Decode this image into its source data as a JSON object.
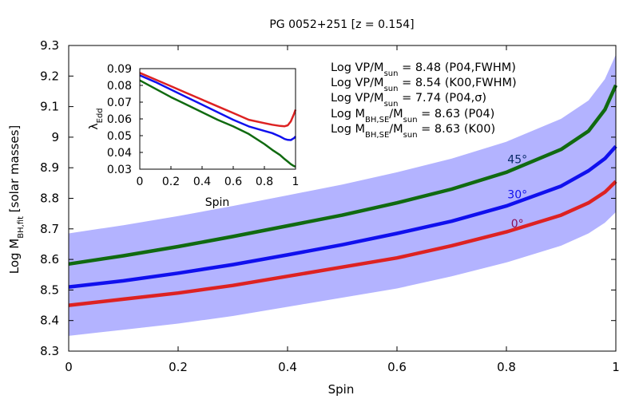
{
  "chart_data": [
    {
      "type": "line",
      "title": "PG 0052+251  [z = 0.154]",
      "xlabel": "Spin",
      "ylabel": "Log M_BH,fit  [solar masses]",
      "xlim": [
        0,
        1
      ],
      "ylim": [
        8.3,
        9.3
      ],
      "x_ticks": [
        "0",
        "0.2",
        "0.4",
        "0.6",
        "0.8",
        "1"
      ],
      "y_ticks": [
        "8.3",
        "8.4",
        "8.5",
        "8.6",
        "8.7",
        "8.8",
        "8.9",
        "9",
        "9.1",
        "9.2",
        "9.3"
      ],
      "x": [
        0,
        0.1,
        0.2,
        0.3,
        0.4,
        0.5,
        0.6,
        0.7,
        0.8,
        0.9,
        0.95,
        0.98,
        1.0
      ],
      "series": [
        {
          "name": "45°",
          "color": "#106a10",
          "values": [
            8.585,
            8.612,
            8.642,
            8.675,
            8.71,
            8.745,
            8.785,
            8.83,
            8.885,
            8.96,
            9.02,
            9.09,
            9.17
          ]
        },
        {
          "name": "30°",
          "color": "#1010ee",
          "values": [
            8.51,
            8.53,
            8.555,
            8.583,
            8.615,
            8.648,
            8.685,
            8.725,
            8.775,
            8.84,
            8.89,
            8.93,
            8.97
          ]
        },
        {
          "name": "0°",
          "color": "#dd2222",
          "values": [
            8.45,
            8.47,
            8.49,
            8.515,
            8.545,
            8.575,
            8.605,
            8.645,
            8.69,
            8.745,
            8.785,
            8.82,
            8.855
          ]
        }
      ],
      "band": {
        "color": "#b3b3ff",
        "upper": [
          8.685,
          8.712,
          8.742,
          8.775,
          8.81,
          8.845,
          8.885,
          8.93,
          8.985,
          9.06,
          9.12,
          9.19,
          9.27
        ],
        "lower": [
          8.35,
          8.37,
          8.39,
          8.415,
          8.445,
          8.475,
          8.505,
          8.545,
          8.59,
          8.645,
          8.685,
          8.72,
          8.755
        ]
      },
      "curve_labels": [
        {
          "text": "45°",
          "color": "#0a2a6a",
          "x": 0.82,
          "y": 8.915
        },
        {
          "text": "30°",
          "color": "#1010ee",
          "x": 0.82,
          "y": 8.8
        },
        {
          "text": "0°",
          "color": "#8a1055",
          "x": 0.82,
          "y": 8.705
        }
      ],
      "annotations": [
        "Log VP/M_sun = 8.48 (P04,FWHM)",
        "Log VP/M_sun = 8.54 (K00,FWHM)",
        "Log VP/M_sun = 7.74 (P04,σ)",
        "Log M_BH,SE/M_sun = 8.63 (P04)",
        "Log M_BH,SE/M_sun = 8.63 (K00)"
      ],
      "grid": false
    },
    {
      "type": "line",
      "xlabel": "Spin",
      "ylabel": "λ_Edd",
      "xlim": [
        0,
        1
      ],
      "ylim": [
        0.03,
        0.09
      ],
      "x_ticks": [
        "0",
        "0.2",
        "0.4",
        "0.6",
        "0.8",
        "1"
      ],
      "y_ticks": [
        "0.03",
        "0.04",
        "0.05",
        "0.06",
        "0.07",
        "0.08",
        "0.09"
      ],
      "x": [
        0,
        0.1,
        0.2,
        0.3,
        0.4,
        0.5,
        0.6,
        0.7,
        0.8,
        0.85,
        0.9,
        0.93,
        0.95,
        0.97,
        0.99,
        1.0
      ],
      "series": [
        {
          "color": "#dd2222",
          "values": [
            0.0875,
            0.0835,
            0.0795,
            0.0755,
            0.0715,
            0.0675,
            0.0635,
            0.0595,
            0.0575,
            0.0565,
            0.0558,
            0.0556,
            0.0562,
            0.0585,
            0.063,
            0.0655
          ]
        },
        {
          "color": "#1010ee",
          "values": [
            0.086,
            0.082,
            0.0775,
            0.073,
            0.0685,
            0.064,
            0.0595,
            0.0555,
            0.0528,
            0.0515,
            0.0495,
            0.048,
            0.0475,
            0.0474,
            0.0485,
            0.0495
          ]
        },
        {
          "color": "#106a10",
          "values": [
            0.083,
            0.078,
            0.073,
            0.0685,
            0.064,
            0.0595,
            0.0555,
            0.051,
            0.045,
            0.0415,
            0.0385,
            0.036,
            0.0345,
            0.033,
            0.0318,
            0.0315
          ]
        }
      ],
      "grid": false
    }
  ]
}
